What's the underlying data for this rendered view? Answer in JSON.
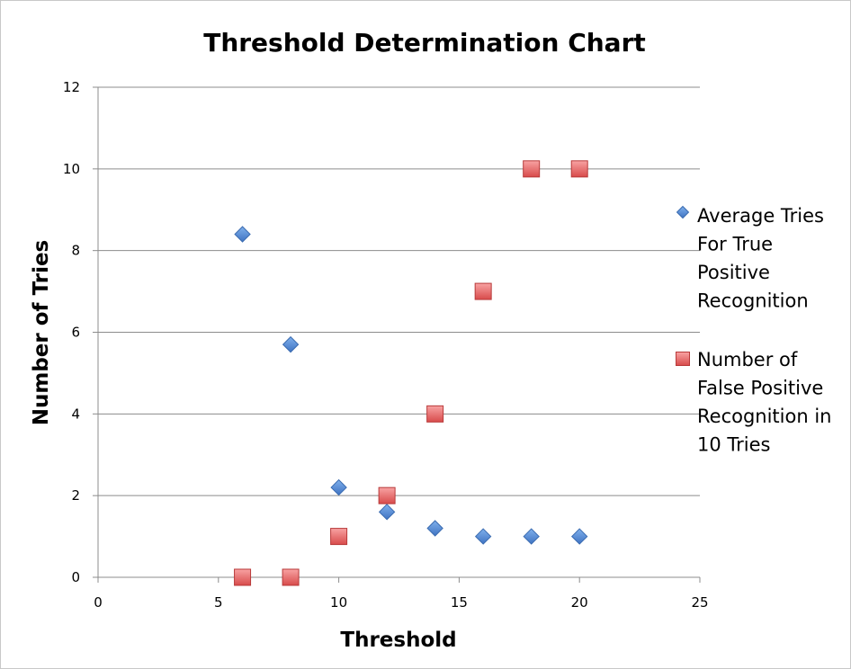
{
  "chart_data": {
    "type": "scatter",
    "title": "Threshold Determination Chart",
    "xlabel": "Threshold",
    "ylabel": "Number of Tries",
    "xlim": [
      0,
      25
    ],
    "ylim": [
      0,
      12
    ],
    "xticks": [
      0,
      5,
      10,
      15,
      20,
      25
    ],
    "yticks": [
      0,
      2,
      4,
      6,
      8,
      10,
      12
    ],
    "grid": "horizontal",
    "legend_position": "right",
    "series": [
      {
        "name": "Average Tries For True Positive Recognition",
        "legend_lines": [
          "Average Tries",
          "For True",
          "Positive",
          "Recognition"
        ],
        "marker": "diamond",
        "color": "#4f81bd",
        "x": [
          6,
          8,
          10,
          12,
          14,
          16,
          18,
          20
        ],
        "y": [
          8.4,
          5.7,
          2.2,
          1.6,
          1.2,
          1,
          1,
          1
        ]
      },
      {
        "name": "Number of False Positive Recognition in 10 Tries",
        "legend_lines": [
          "Number of",
          "False Positive",
          "Recognition in",
          "10 Tries"
        ],
        "marker": "square",
        "color": "#e05a5a",
        "x": [
          6,
          8,
          10,
          12,
          14,
          16,
          18,
          20
        ],
        "y": [
          0,
          0,
          1,
          2,
          4,
          7,
          10,
          10
        ]
      }
    ]
  }
}
